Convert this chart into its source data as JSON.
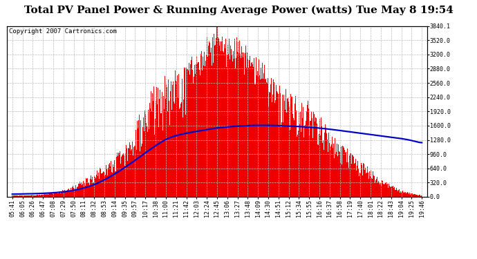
{
  "title": "Total PV Panel Power & Running Average Power (watts) Tue May 8 19:54",
  "copyright_text": "Copyright 2007 Cartronics.com",
  "background_color": "#ffffff",
  "plot_bg_color": "#ffffff",
  "grid_color": "#bbbbbb",
  "bar_color": "#ee0000",
  "line_color": "#0000cc",
  "ylabel_right_values": [
    0.0,
    320.0,
    640.0,
    960.0,
    1280.0,
    1600.0,
    1920.0,
    2240.0,
    2560.0,
    2880.0,
    3200.0,
    3520.0,
    3840.1
  ],
  "x_tick_labels": [
    "05:41",
    "06:05",
    "06:26",
    "06:47",
    "07:08",
    "07:29",
    "07:50",
    "08:11",
    "08:32",
    "08:53",
    "09:14",
    "09:35",
    "09:57",
    "10:17",
    "10:38",
    "11:00",
    "11:21",
    "11:42",
    "12:03",
    "12:24",
    "12:45",
    "13:06",
    "13:27",
    "13:48",
    "14:09",
    "14:30",
    "14:51",
    "15:12",
    "15:34",
    "15:55",
    "16:16",
    "16:37",
    "16:58",
    "17:19",
    "17:40",
    "18:01",
    "18:22",
    "18:43",
    "19:04",
    "19:25",
    "19:46"
  ],
  "envelope_pv": [
    30,
    35,
    42,
    60,
    100,
    160,
    250,
    380,
    530,
    720,
    950,
    1200,
    1600,
    2100,
    2500,
    2700,
    2900,
    3100,
    3200,
    3500,
    3840,
    3600,
    3500,
    3300,
    3100,
    2900,
    2700,
    2500,
    2300,
    2100,
    1900,
    1600,
    1300,
    1050,
    800,
    600,
    430,
    280,
    160,
    80,
    30
  ],
  "running_avg": [
    60,
    65,
    70,
    78,
    90,
    110,
    145,
    195,
    270,
    380,
    510,
    660,
    820,
    990,
    1150,
    1300,
    1380,
    1430,
    1470,
    1510,
    1550,
    1570,
    1590,
    1600,
    1605,
    1605,
    1600,
    1590,
    1580,
    1565,
    1545,
    1520,
    1490,
    1460,
    1430,
    1400,
    1370,
    1340,
    1310,
    1270,
    1200
  ],
  "ylim": [
    0,
    3840.1
  ],
  "n_points": 41,
  "title_fontsize": 11,
  "copyright_fontsize": 6.5,
  "tick_fontsize": 6,
  "line_width": 1.6,
  "n_bars": 600
}
